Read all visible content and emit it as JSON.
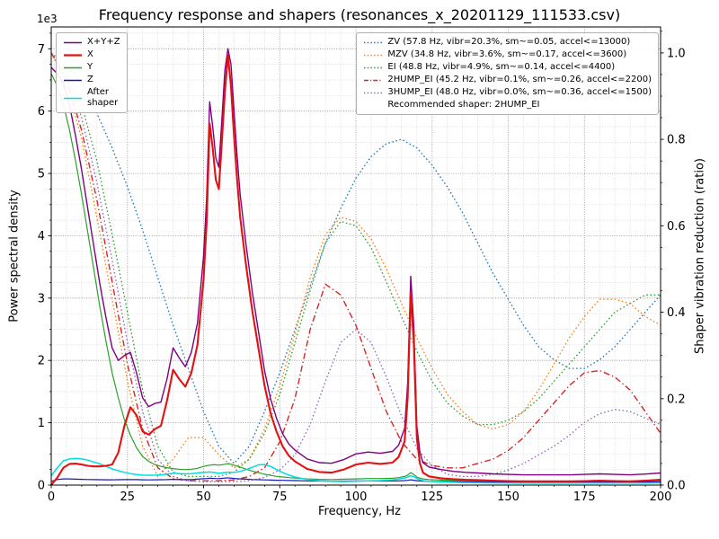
{
  "chart_data": {
    "type": "line",
    "title": "Frequency response and shapers (resonances_x_20201129_111533.csv)",
    "xlabel": "Frequency, Hz",
    "ylabel_left": "Power spectral density",
    "ylabel_right": "Shaper vibration reduction (ratio)",
    "y_offset_text": "1e3",
    "xlim": [
      0,
      200
    ],
    "x_major_step": 25,
    "x_minor_step": 5,
    "ylim_left": [
      0,
      7350
    ],
    "y_left_major_step": 1000,
    "y_left_minor_step": 250,
    "ylim_right": [
      0,
      1.06
    ],
    "y_right_major_step": 0.2,
    "y_right_minor_step": 0.05,
    "grid": {
      "major_color": "#8f8f8f",
      "minor_color": "#cfcfcf"
    },
    "background_color": "#ffffff",
    "psd": {
      "x": [
        0,
        2,
        4,
        6,
        8,
        10,
        12,
        14,
        16,
        18,
        20,
        22,
        24,
        26,
        28,
        30,
        32,
        34,
        36,
        38,
        40,
        42,
        44,
        46,
        48,
        50,
        51,
        52,
        53,
        54,
        55,
        56,
        57,
        58,
        59,
        60,
        61,
        62,
        64,
        66,
        68,
        70,
        72,
        74,
        76,
        78,
        80,
        84,
        88,
        92,
        96,
        100,
        104,
        108,
        112,
        114,
        116,
        117,
        118,
        119,
        120,
        121,
        122,
        124,
        128,
        132,
        136,
        140,
        145,
        150,
        155,
        160,
        165,
        170,
        175,
        180,
        185,
        190,
        195,
        200
      ],
      "series": [
        {
          "name": "xyz",
          "label": "X+Y+Z",
          "color": "#800080",
          "width": 1.4,
          "dash": "solid",
          "axis": "left",
          "values": [
            6700,
            6600,
            6450,
            6100,
            5600,
            5050,
            4430,
            3820,
            3220,
            2680,
            2200,
            2000,
            2080,
            2130,
            1800,
            1400,
            1260,
            1310,
            1330,
            1700,
            2200,
            2040,
            1900,
            2130,
            2600,
            3680,
            4600,
            6150,
            5750,
            5250,
            5100,
            5850,
            6650,
            7000,
            6750,
            6000,
            5280,
            4660,
            3830,
            3100,
            2470,
            1840,
            1380,
            1060,
            820,
            660,
            560,
            420,
            360,
            350,
            410,
            500,
            530,
            510,
            540,
            640,
            910,
            1640,
            3350,
            2550,
            950,
            530,
            360,
            290,
            250,
            220,
            205,
            195,
            180,
            172,
            165,
            164,
            164,
            164,
            172,
            180,
            172,
            164,
            177,
            195
          ]
        },
        {
          "name": "x",
          "label": "X",
          "color": "#e11212",
          "width": 2.1,
          "dash": "solid",
          "axis": "left",
          "values": [
            0,
            120,
            280,
            340,
            345,
            330,
            310,
            300,
            300,
            310,
            330,
            520,
            950,
            1250,
            1120,
            860,
            810,
            900,
            950,
            1350,
            1850,
            1700,
            1580,
            1800,
            2250,
            3300,
            4200,
            5800,
            5400,
            4900,
            4750,
            5500,
            6300,
            6900,
            6400,
            5600,
            4900,
            4300,
            3500,
            2800,
            2200,
            1600,
            1150,
            850,
            620,
            470,
            380,
            260,
            210,
            200,
            250,
            330,
            360,
            340,
            360,
            450,
            700,
            1400,
            3080,
            2300,
            750,
            350,
            200,
            140,
            110,
            95,
            85,
            80,
            70,
            65,
            60,
            60,
            60,
            60,
            65,
            70,
            65,
            60,
            70,
            85
          ]
        },
        {
          "name": "y",
          "label": "Y",
          "color": "#2ca02c",
          "width": 1.2,
          "dash": "solid",
          "axis": "left",
          "values": [
            6600,
            6400,
            6100,
            5700,
            5200,
            4650,
            4050,
            3450,
            2850,
            2300,
            1800,
            1400,
            1050,
            800,
            600,
            460,
            380,
            330,
            300,
            280,
            265,
            255,
            250,
            255,
            270,
            300,
            310,
            320,
            325,
            325,
            320,
            325,
            335,
            345,
            335,
            320,
            305,
            290,
            255,
            225,
            200,
            175,
            155,
            140,
            130,
            120,
            112,
            100,
            92,
            90,
            95,
            100,
            105,
            105,
            110,
            120,
            140,
            160,
            200,
            170,
            130,
            110,
            100,
            90,
            80,
            72,
            68,
            65,
            62,
            60,
            58,
            58,
            58,
            58,
            60,
            62,
            60,
            58,
            60,
            62
          ]
        },
        {
          "name": "z",
          "label": "Z",
          "color": "#1717b8",
          "width": 1.2,
          "dash": "solid",
          "axis": "left",
          "values": [
            60,
            90,
            100,
            100,
            95,
            92,
            90,
            88,
            86,
            85,
            85,
            86,
            88,
            90,
            88,
            85,
            84,
            85,
            86,
            88,
            92,
            90,
            88,
            90,
            95,
            102,
            105,
            110,
            108,
            105,
            104,
            108,
            112,
            116,
            112,
            106,
            102,
            100,
            95,
            90,
            87,
            84,
            80,
            78,
            76,
            74,
            72,
            68,
            65,
            64,
            65,
            66,
            66,
            65,
            66,
            68,
            72,
            76,
            85,
            78,
            70,
            66,
            63,
            60,
            57,
            55,
            53,
            52,
            50,
            49,
            48,
            48,
            48,
            48,
            49,
            50,
            49,
            48,
            49,
            50
          ]
        },
        {
          "name": "after-shaper",
          "label": "After\nshaper",
          "color": "#00dede",
          "width": 1.5,
          "dash": "solid",
          "axis": "left",
          "values": [
            150,
            280,
            390,
            420,
            430,
            420,
            400,
            370,
            340,
            300,
            260,
            230,
            205,
            185,
            170,
            160,
            158,
            160,
            165,
            175,
            190,
            185,
            180,
            185,
            195,
            205,
            208,
            210,
            205,
            198,
            192,
            196,
            202,
            208,
            205,
            205,
            210,
            220,
            250,
            285,
            325,
            330,
            300,
            250,
            200,
            160,
            130,
            90,
            70,
            60,
            58,
            62,
            68,
            72,
            85,
            95,
            115,
            130,
            150,
            135,
            105,
            85,
            72,
            60,
            50,
            44,
            40,
            37,
            34,
            32,
            30,
            30,
            30,
            30,
            32,
            33,
            32,
            31,
            33,
            36
          ]
        }
      ]
    },
    "shapers": {
      "x": [
        0,
        5,
        10,
        15,
        20,
        25,
        30,
        35,
        40,
        45,
        50,
        55,
        60,
        65,
        70,
        75,
        80,
        85,
        90,
        95,
        100,
        105,
        110,
        115,
        120,
        125,
        130,
        135,
        140,
        145,
        150,
        155,
        160,
        165,
        170,
        175,
        180,
        185,
        190,
        195,
        200
      ],
      "series": [
        {
          "name": "zv",
          "label": "ZV (57.8 Hz, vibr=20.3%, sm~=0.05, accel<=13000)",
          "color": "#1f77b4",
          "width": 1.3,
          "dash": "dotted",
          "axis": "right",
          "values": [
            1.0,
            0.97,
            0.93,
            0.86,
            0.78,
            0.69,
            0.59,
            0.48,
            0.37,
            0.27,
            0.17,
            0.09,
            0.05,
            0.09,
            0.17,
            0.26,
            0.36,
            0.46,
            0.56,
            0.64,
            0.71,
            0.76,
            0.79,
            0.8,
            0.78,
            0.74,
            0.69,
            0.63,
            0.56,
            0.49,
            0.43,
            0.37,
            0.32,
            0.29,
            0.27,
            0.27,
            0.29,
            0.32,
            0.36,
            0.4,
            0.44
          ]
        },
        {
          "name": "mzv",
          "label": "MZV (34.8 Hz, vibr=3.6%, sm~=0.17, accel<=3600)",
          "color": "#ff7f0e",
          "width": 1.3,
          "dash": "dotted",
          "axis": "right",
          "values": [
            1.0,
            0.93,
            0.8,
            0.62,
            0.43,
            0.24,
            0.09,
            0.02,
            0.06,
            0.11,
            0.11,
            0.07,
            0.04,
            0.06,
            0.13,
            0.23,
            0.35,
            0.48,
            0.58,
            0.62,
            0.61,
            0.57,
            0.5,
            0.42,
            0.34,
            0.27,
            0.21,
            0.17,
            0.14,
            0.13,
            0.14,
            0.17,
            0.22,
            0.28,
            0.34,
            0.39,
            0.43,
            0.43,
            0.42,
            0.39,
            0.37
          ]
        },
        {
          "name": "ei",
          "label": "EI (48.8 Hz, vibr=4.9%, sm~=0.14, accel<=4400)",
          "color": "#2ca02c",
          "width": 1.3,
          "dash": "dotted",
          "axis": "right",
          "values": [
            1.0,
            0.96,
            0.88,
            0.75,
            0.58,
            0.4,
            0.22,
            0.09,
            0.03,
            0.02,
            0.02,
            0.02,
            0.03,
            0.06,
            0.12,
            0.21,
            0.33,
            0.45,
            0.56,
            0.61,
            0.6,
            0.55,
            0.47,
            0.39,
            0.31,
            0.24,
            0.19,
            0.16,
            0.14,
            0.14,
            0.15,
            0.17,
            0.2,
            0.24,
            0.28,
            0.32,
            0.36,
            0.4,
            0.42,
            0.44,
            0.44
          ]
        },
        {
          "name": "2hump-ei",
          "label": "2HUMP_EI (45.2 Hz, vibr=0.1%, sm~=0.26, accel<=2200)",
          "color": "#d62728",
          "width": 1.4,
          "dash": "dashdot",
          "axis": "right",
          "values": [
            1.0,
            0.94,
            0.82,
            0.66,
            0.47,
            0.28,
            0.13,
            0.04,
            0.015,
            0.01,
            0.01,
            0.01,
            0.012,
            0.02,
            0.04,
            0.1,
            0.2,
            0.36,
            0.465,
            0.44,
            0.37,
            0.27,
            0.17,
            0.1,
            0.06,
            0.045,
            0.04,
            0.04,
            0.05,
            0.06,
            0.08,
            0.11,
            0.15,
            0.19,
            0.23,
            0.26,
            0.265,
            0.25,
            0.22,
            0.17,
            0.12
          ]
        },
        {
          "name": "3hump-ei",
          "label": "3HUMP_EI (48.0 Hz, vibr=0.0%, sm~=0.36, accel<=1500)",
          "color": "#9467bd",
          "width": 1.3,
          "dash": "dotted",
          "axis": "right",
          "values": [
            1.0,
            0.95,
            0.85,
            0.7,
            0.52,
            0.33,
            0.17,
            0.06,
            0.02,
            0.01,
            0.008,
            0.008,
            0.008,
            0.01,
            0.018,
            0.035,
            0.07,
            0.14,
            0.24,
            0.33,
            0.36,
            0.33,
            0.25,
            0.16,
            0.085,
            0.045,
            0.025,
            0.02,
            0.02,
            0.025,
            0.035,
            0.05,
            0.07,
            0.09,
            0.115,
            0.145,
            0.165,
            0.175,
            0.17,
            0.155,
            0.14
          ]
        }
      ]
    },
    "recommended_note": "Recommended shaper: 2HUMP_EI"
  }
}
